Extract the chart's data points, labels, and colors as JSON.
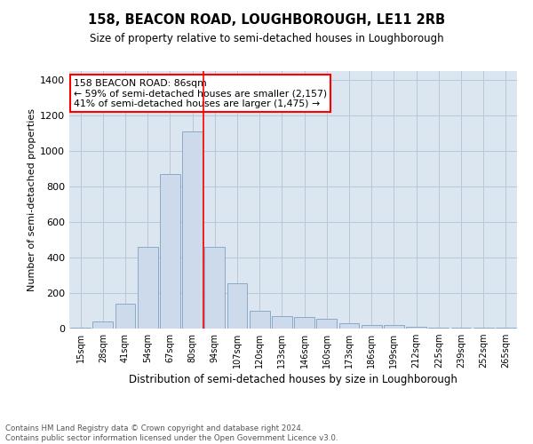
{
  "title": "158, BEACON ROAD, LOUGHBOROUGH, LE11 2RB",
  "subtitle": "Size of property relative to semi-detached houses in Loughborough",
  "xlabel": "Distribution of semi-detached houses by size in Loughborough",
  "ylabel": "Number of semi-detached properties",
  "categories": [
    "15sqm",
    "28sqm",
    "41sqm",
    "54sqm",
    "67sqm",
    "80sqm",
    "94sqm",
    "107sqm",
    "120sqm",
    "133sqm",
    "146sqm",
    "160sqm",
    "173sqm",
    "186sqm",
    "199sqm",
    "212sqm",
    "225sqm",
    "239sqm",
    "252sqm",
    "265sqm"
  ],
  "values": [
    5,
    40,
    140,
    460,
    870,
    1110,
    460,
    255,
    100,
    70,
    65,
    55,
    28,
    22,
    18,
    10,
    7,
    5,
    3,
    5
  ],
  "bar_color": "#cddaeb",
  "bar_edge_color": "#8aaac8",
  "grid_color": "#b8c8d8",
  "background_color": "#dce6f0",
  "marker_bin_index": 5,
  "marker_color": "red",
  "annotation_title": "158 BEACON ROAD: 86sqm",
  "annotation_line1": "← 59% of semi-detached houses are smaller (2,157)",
  "annotation_line2": "41% of semi-detached houses are larger (1,475) →",
  "footer_line1": "Contains HM Land Registry data © Crown copyright and database right 2024.",
  "footer_line2": "Contains public sector information licensed under the Open Government Licence v3.0.",
  "ylim": [
    0,
    1450
  ],
  "yticks": [
    0,
    200,
    400,
    600,
    800,
    1000,
    1200,
    1400
  ]
}
